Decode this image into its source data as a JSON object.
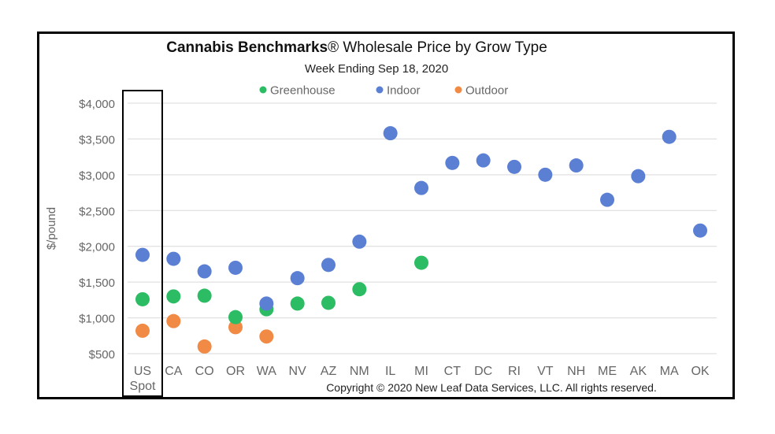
{
  "chart_data": {
    "type": "scatter",
    "title": "Cannabis Benchmarks® Wholesale Price by Grow Type",
    "subtitle": "Week Ending Sep 18, 2020",
    "xlabel": "",
    "ylabel": "$/pound",
    "ylim": [
      500,
      4000
    ],
    "yticks": [
      500,
      1000,
      1500,
      2000,
      2500,
      3000,
      3500,
      4000
    ],
    "ytick_labels": [
      "$500",
      "$1,000",
      "$1,500",
      "$2,000",
      "$2,500",
      "$3,000",
      "$3,500",
      "$4,000"
    ],
    "grid": true,
    "legend_position": "top-center",
    "categories": [
      "US Spot",
      "CA",
      "CO",
      "OR",
      "WA",
      "NV",
      "AZ",
      "NM",
      "IL",
      "MI",
      "CT",
      "DC",
      "RI",
      "VT",
      "NH",
      "ME",
      "AK",
      "MA",
      "OK"
    ],
    "category_labels": [
      [
        "US",
        "Spot"
      ],
      [
        "CA"
      ],
      [
        "CO"
      ],
      [
        "OR"
      ],
      [
        "WA"
      ],
      [
        "NV"
      ],
      [
        "AZ"
      ],
      [
        "NM"
      ],
      [
        "IL"
      ],
      [
        "MI"
      ],
      [
        "CT"
      ],
      [
        "DC"
      ],
      [
        "RI"
      ],
      [
        "VT"
      ],
      [
        "NH"
      ],
      [
        "ME"
      ],
      [
        "AK"
      ],
      [
        "MA"
      ],
      [
        "OK"
      ]
    ],
    "highlighted_category": "US Spot",
    "series": [
      {
        "name": "Greenhouse",
        "color": "#2cbc64",
        "values": [
          1260,
          1300,
          1310,
          1010,
          1120,
          1200,
          1210,
          1400,
          null,
          1770,
          null,
          null,
          null,
          null,
          null,
          null,
          null,
          null,
          null
        ]
      },
      {
        "name": "Indoor",
        "color": "#5b7fd3",
        "values": [
          1880,
          1825,
          1650,
          1700,
          1200,
          1555,
          1740,
          2065,
          3580,
          2815,
          3165,
          3200,
          3110,
          3000,
          3130,
          2650,
          2980,
          3530,
          2220
        ]
      },
      {
        "name": "Outdoor",
        "color": "#f08a45",
        "values": [
          820,
          955,
          600,
          870,
          740,
          null,
          null,
          null,
          null,
          null,
          null,
          null,
          null,
          null,
          null,
          null,
          null,
          null,
          null
        ]
      }
    ],
    "draw_order": [
      "Outdoor",
      "Greenhouse",
      "Indoor"
    ],
    "annotation": "Copyright © 2020 New Leaf Data Services, LLC. All rights reserved."
  }
}
